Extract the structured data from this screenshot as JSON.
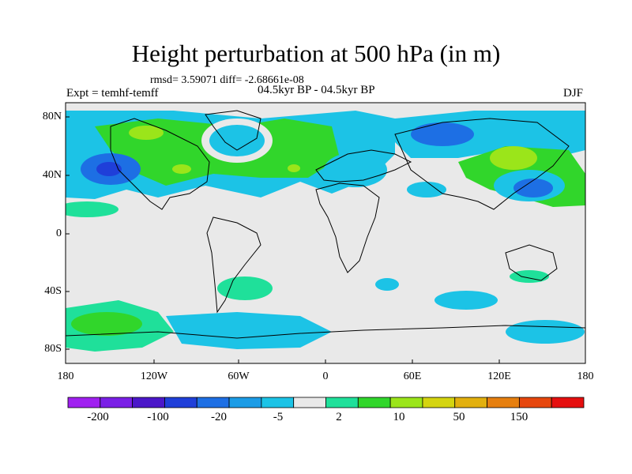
{
  "title": "Height perturbation at 500 hPa (in m)",
  "stats": "rmsd= 3.59071 diff= -2.68661e-08",
  "experiment": "Expt = temhf-temff",
  "period": "04.5kyr BP - 04.5kyr BP",
  "season": "DJF",
  "lat_ticks": [
    "80N",
    "40N",
    "0",
    "40S",
    "80S"
  ],
  "lon_ticks": [
    "180",
    "120W",
    "60W",
    "0",
    "60E",
    "120E",
    "180"
  ],
  "colorbar": {
    "colors": [
      "#a020f0",
      "#7a1fe6",
      "#4b17c9",
      "#1f3fd9",
      "#1d6fe4",
      "#1c9ce6",
      "#1cc3e6",
      "#e9e9e9",
      "#1fe09a",
      "#31d62b",
      "#9be51a",
      "#d4d410",
      "#e2b00e",
      "#e67f0f",
      "#e6460d",
      "#e50f0f"
    ],
    "labels": [
      "-200",
      "-100",
      "-20",
      "-5",
      "2",
      "10",
      "50",
      "150"
    ]
  }
}
